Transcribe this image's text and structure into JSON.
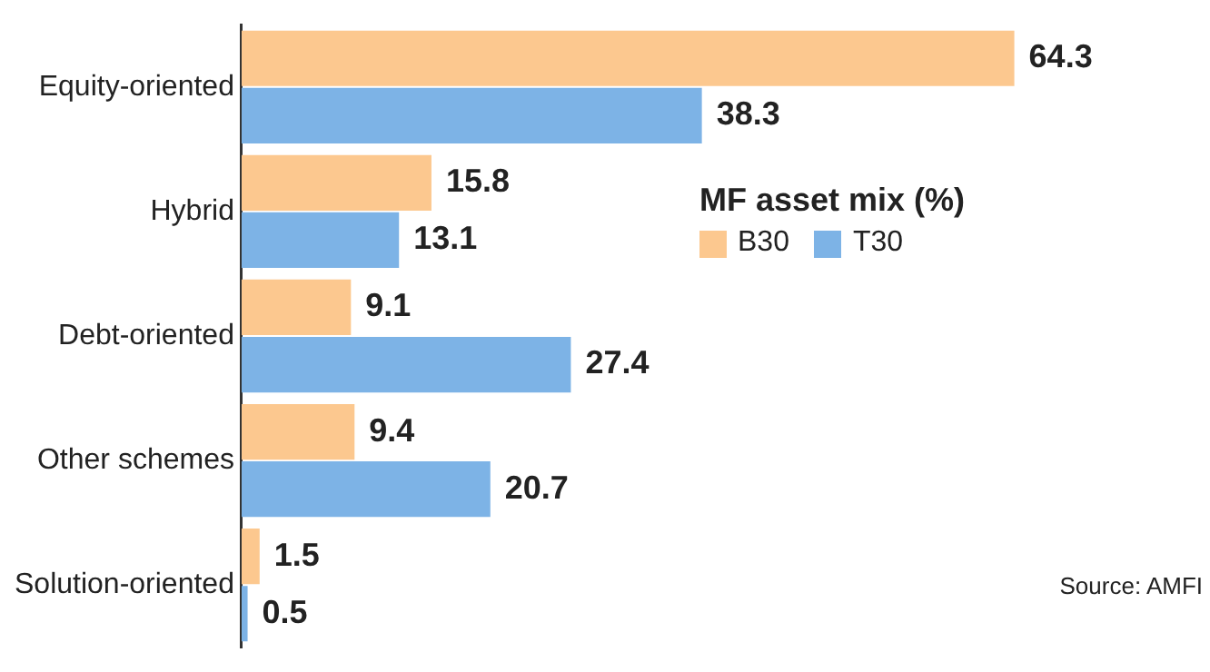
{
  "chart_data": {
    "type": "bar",
    "orientation": "horizontal",
    "categories": [
      "Equity-oriented",
      "Hybrid",
      "Debt-oriented",
      "Other schemes",
      "Solution-oriented"
    ],
    "series": [
      {
        "name": "B30",
        "color": "#fcc88f",
        "values": [
          64.3,
          15.8,
          9.1,
          9.4,
          1.5
        ]
      },
      {
        "name": "T30",
        "color": "#7db3e6",
        "values": [
          38.3,
          13.1,
          27.4,
          20.7,
          0.5
        ]
      }
    ],
    "legend_title": "MF asset mix (%)",
    "legend": "right",
    "data_labels": true,
    "grid": false,
    "annotations": [
      "Source: AMFI"
    ]
  }
}
